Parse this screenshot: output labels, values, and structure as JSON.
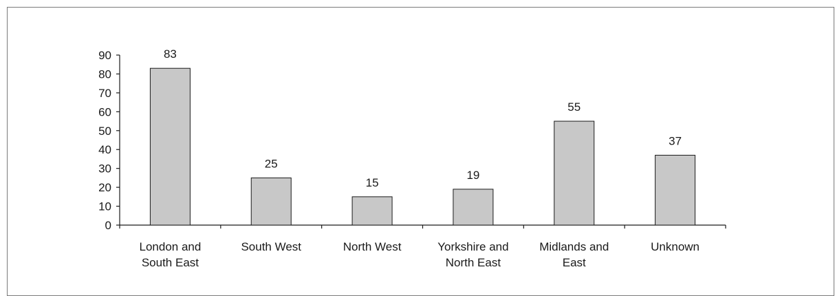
{
  "chart_data": {
    "type": "bar",
    "categories": [
      [
        "London and",
        "South East"
      ],
      [
        "South West"
      ],
      [
        "North West"
      ],
      [
        "Yorkshire and",
        "North East"
      ],
      [
        "Midlands and",
        "East"
      ],
      [
        "Unknown"
      ]
    ],
    "values": [
      83,
      25,
      15,
      19,
      55,
      37
    ],
    "ylim": [
      0,
      90
    ],
    "yticks": [
      0,
      10,
      20,
      30,
      40,
      50,
      60,
      70,
      80,
      90
    ],
    "grid": false,
    "data_labels": true,
    "colors": {
      "bar_fill": "#c8c8c8",
      "bar_stroke": "#1a1a1a",
      "axis": "#1a1a1a"
    }
  }
}
